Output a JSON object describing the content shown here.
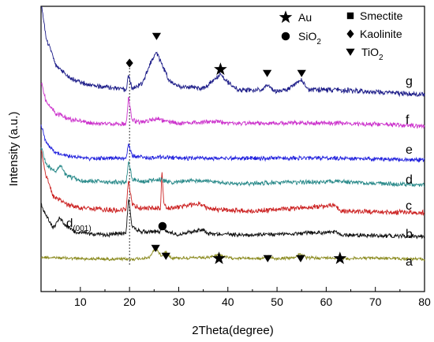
{
  "chart_data": {
    "type": "line",
    "xlabel": "2Theta(degree)",
    "ylabel": "Intensity (a.u.)",
    "xlim": [
      2,
      80
    ],
    "x_ticks": [
      10,
      20,
      30,
      40,
      50,
      60,
      70,
      80
    ],
    "x_tick_labels": [
      "10",
      "20",
      "30",
      "40",
      "50",
      "60",
      "70",
      "80"
    ],
    "y_ticks_shown": false,
    "grid": false,
    "series": [
      {
        "name": "a",
        "color": "#8a8a1e",
        "profile": [
          [
            2,
            0.04
          ],
          [
            10,
            0.02
          ],
          [
            20,
            0.01
          ],
          [
            24,
            0.03
          ],
          [
            25.3,
            0.18
          ],
          [
            26.5,
            0.05
          ],
          [
            27.4,
            0.12
          ],
          [
            28.5,
            0.03
          ],
          [
            36,
            0.03
          ],
          [
            38.2,
            0.08
          ],
          [
            40,
            0.03
          ],
          [
            47.2,
            0.02
          ],
          [
            48.1,
            0.06
          ],
          [
            49.5,
            0.02
          ],
          [
            53.5,
            0.03
          ],
          [
            54.6,
            0.09
          ],
          [
            56,
            0.03
          ],
          [
            62.7,
            0.03
          ],
          [
            64,
            0.02
          ],
          [
            70,
            0.03
          ],
          [
            80,
            0.01
          ]
        ]
      },
      {
        "name": "b",
        "color": "#111111",
        "profile": [
          [
            2,
            0.45
          ],
          [
            3,
            0.3
          ],
          [
            4.5,
            0.12
          ],
          [
            5.8,
            0.26
          ],
          [
            7,
            0.15
          ],
          [
            9,
            0.06
          ],
          [
            15,
            0.02
          ],
          [
            19.3,
            0.05
          ],
          [
            19.8,
            0.55
          ],
          [
            20.5,
            0.14
          ],
          [
            22,
            0.07
          ],
          [
            26.2,
            0.07
          ],
          [
            26.7,
            0.14
          ],
          [
            27.3,
            0.07
          ],
          [
            30,
            0.03
          ],
          [
            35,
            0.1
          ],
          [
            36,
            0.04
          ],
          [
            45,
            0.02
          ],
          [
            62,
            0.06
          ],
          [
            63,
            0.02
          ],
          [
            80,
            0.0
          ]
        ]
      },
      {
        "name": "c",
        "color": "#cc2222",
        "profile": [
          [
            2,
            0.85
          ],
          [
            3,
            0.5
          ],
          [
            4.5,
            0.22
          ],
          [
            7,
            0.12
          ],
          [
            10,
            0.06
          ],
          [
            18,
            0.03
          ],
          [
            19.3,
            0.06
          ],
          [
            19.8,
            0.42
          ],
          [
            20.5,
            0.12
          ],
          [
            22,
            0.06
          ],
          [
            26.3,
            0.06
          ],
          [
            26.6,
            0.58
          ],
          [
            27,
            0.1
          ],
          [
            28,
            0.06
          ],
          [
            34.5,
            0.12
          ],
          [
            36,
            0.05
          ],
          [
            45,
            0.02
          ],
          [
            61.8,
            0.1
          ],
          [
            63,
            0.02
          ],
          [
            80,
            0.0
          ]
        ]
      },
      {
        "name": "d",
        "color": "#2a8a8a",
        "profile": [
          [
            2,
            0.55
          ],
          [
            3,
            0.3
          ],
          [
            5,
            0.18
          ],
          [
            6,
            0.28
          ],
          [
            7,
            0.14
          ],
          [
            10,
            0.06
          ],
          [
            19.3,
            0.04
          ],
          [
            19.8,
            0.35
          ],
          [
            20.5,
            0.1
          ],
          [
            22,
            0.05
          ],
          [
            24,
            0.06
          ],
          [
            26,
            0.08
          ],
          [
            28,
            0.04
          ],
          [
            35,
            0.07
          ],
          [
            40,
            0.02
          ],
          [
            62,
            0.05
          ],
          [
            80,
            0.0
          ]
        ]
      },
      {
        "name": "e",
        "color": "#2222dd",
        "profile": [
          [
            2,
            0.6
          ],
          [
            3,
            0.3
          ],
          [
            5,
            0.12
          ],
          [
            8,
            0.06
          ],
          [
            12,
            0.03
          ],
          [
            19.3,
            0.03
          ],
          [
            19.8,
            0.28
          ],
          [
            20.5,
            0.07
          ],
          [
            24,
            0.04
          ],
          [
            26,
            0.05
          ],
          [
            30,
            0.03
          ],
          [
            38,
            0.03
          ],
          [
            62,
            0.03
          ],
          [
            80,
            0.0
          ]
        ]
      },
      {
        "name": "f",
        "color": "#cc33cc",
        "profile": [
          [
            2,
            0.7
          ],
          [
            3,
            0.4
          ],
          [
            5,
            0.2
          ],
          [
            8,
            0.1
          ],
          [
            12,
            0.05
          ],
          [
            19.3,
            0.03
          ],
          [
            19.8,
            0.45
          ],
          [
            20.5,
            0.1
          ],
          [
            22,
            0.06
          ],
          [
            25.5,
            0.12
          ],
          [
            27,
            0.08
          ],
          [
            30,
            0.04
          ],
          [
            38,
            0.08
          ],
          [
            40,
            0.04
          ],
          [
            62,
            0.05
          ],
          [
            80,
            0.0
          ]
        ]
      },
      {
        "name": "g",
        "color": "#1c1c88",
        "profile": [
          [
            2,
            1.2
          ],
          [
            3,
            0.75
          ],
          [
            5,
            0.4
          ],
          [
            8,
            0.22
          ],
          [
            12,
            0.14
          ],
          [
            17,
            0.1
          ],
          [
            19.3,
            0.08
          ],
          [
            19.8,
            0.26
          ],
          [
            20.5,
            0.1
          ],
          [
            22.5,
            0.15
          ],
          [
            24.5,
            0.45
          ],
          [
            25.5,
            0.55
          ],
          [
            26.5,
            0.42
          ],
          [
            28,
            0.2
          ],
          [
            30,
            0.12
          ],
          [
            35,
            0.1
          ],
          [
            37.5,
            0.22
          ],
          [
            38.5,
            0.28
          ],
          [
            39.5,
            0.2
          ],
          [
            42,
            0.08
          ],
          [
            47,
            0.08
          ],
          [
            48,
            0.14
          ],
          [
            49.5,
            0.06
          ],
          [
            52,
            0.08
          ],
          [
            54,
            0.18
          ],
          [
            55,
            0.2
          ],
          [
            56.5,
            0.08
          ],
          [
            62,
            0.08
          ],
          [
            80,
            0.02
          ]
        ]
      }
    ],
    "legend": [
      {
        "marker": "star",
        "label": "Au"
      },
      {
        "marker": "circle",
        "label": "SiO",
        "sub": "2"
      },
      {
        "marker": "square",
        "label": "Smectite"
      },
      {
        "marker": "diamond",
        "label": "Kaolinite"
      },
      {
        "marker": "triangle",
        "label": "TiO",
        "sub": "2"
      }
    ],
    "legend_position": "top-right",
    "reference_line_x": 20,
    "annotation": {
      "text": "d",
      "sub": "(001)",
      "x": 7.5
    },
    "peak_markers": [
      {
        "series": "g",
        "marker": "diamond",
        "x": 20
      },
      {
        "series": "g",
        "marker": "triangle",
        "x": 25.5
      },
      {
        "series": "g",
        "marker": "star",
        "x": 38.5
      },
      {
        "series": "g",
        "marker": "triangle",
        "x": 48
      },
      {
        "series": "g",
        "marker": "triangle",
        "x": 55
      },
      {
        "series": "b",
        "marker": "circle",
        "x": 26.7
      },
      {
        "series": "a",
        "marker": "triangle",
        "x": 25.3
      },
      {
        "series": "a",
        "marker": "triangle",
        "x": 27.4
      },
      {
        "series": "a",
        "marker": "star",
        "x": 38.2
      },
      {
        "series": "a",
        "marker": "triangle",
        "x": 48.1
      },
      {
        "series": "a",
        "marker": "triangle",
        "x": 54.8
      },
      {
        "series": "a",
        "marker": "star",
        "x": 62.8
      }
    ]
  }
}
